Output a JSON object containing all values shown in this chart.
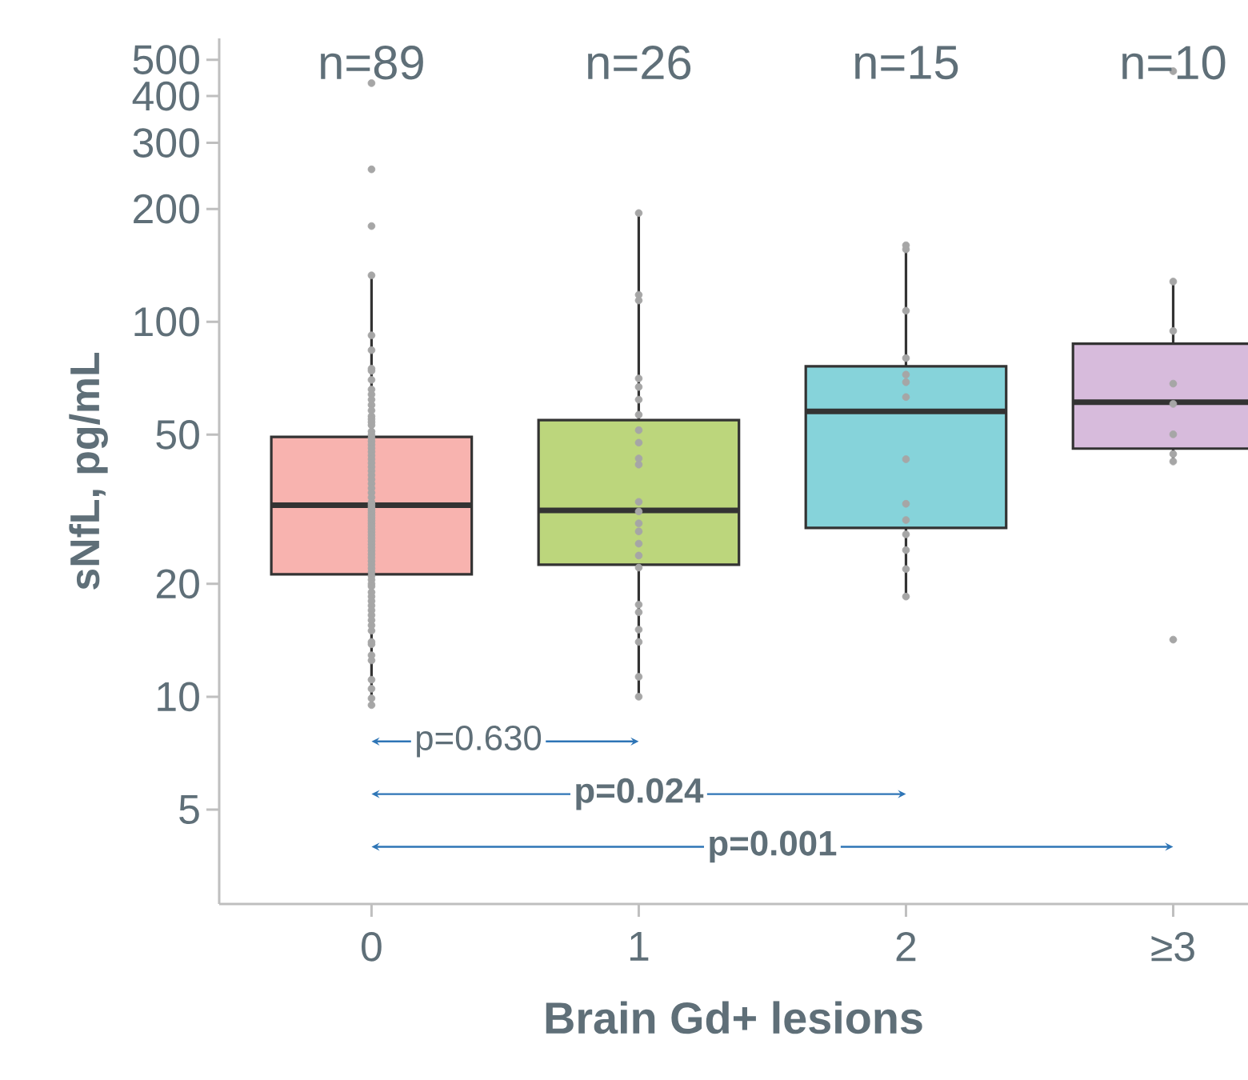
{
  "chart_data": {
    "type": "box",
    "xlabel": "Brain Gd+ lesions",
    "ylabel": "sNfL, pg/mL",
    "categories": [
      "0",
      "1",
      "2",
      "≥3"
    ],
    "boxes": [
      {
        "low": 9.5,
        "q1": 21.2,
        "median": 32.4,
        "q3": 49.3,
        "high": 131
      },
      {
        "low": 10,
        "q1": 22.5,
        "median": 31.4,
        "q3": 54.7,
        "high": 195
      },
      {
        "low": 18.6,
        "q1": 28.2,
        "median": 57.7,
        "q3": 76.1,
        "high": 160
      },
      {
        "low": 43,
        "q1": 45.9,
        "median": 61,
        "q3": 87.4,
        "high": 128
      }
    ],
    "colors": [
      "#f8b3af",
      "#bcd67c",
      "#86d3da",
      "#d7bbdc"
    ],
    "series": [
      {
        "type": "scatter",
        "color": "#a6a6a6",
        "x": [
          "0",
          "0",
          "0",
          "0",
          "0",
          "0",
          "0",
          "0",
          "0",
          "0",
          "0",
          "0",
          "0",
          "0",
          "0",
          "0",
          "0",
          "0",
          "0",
          "0",
          "0",
          "0",
          "0",
          "0",
          "0",
          "0",
          "0",
          "0",
          "0",
          "0",
          "0",
          "0",
          "0",
          "0",
          "0",
          "0",
          "0",
          "0",
          "0",
          "0",
          "0",
          "0",
          "0",
          "0",
          "0",
          "0",
          "0",
          "0",
          "0",
          "0",
          "0",
          "0",
          "0",
          "0",
          "0",
          "0",
          "0",
          "0",
          "0",
          "0",
          "0",
          "0",
          "0",
          "0",
          "0",
          "0",
          "0",
          "0",
          "0",
          "0",
          "0",
          "0",
          "0",
          "0",
          "0",
          "0",
          "0",
          "0",
          "0",
          "0",
          "0"
        ],
        "values": [
          433,
          255,
          180,
          133,
          92,
          84,
          75,
          74,
          70,
          66,
          64,
          62,
          60,
          58,
          56,
          55,
          54,
          53,
          51,
          50,
          49,
          48,
          47,
          46,
          45,
          44,
          43,
          42,
          41,
          40,
          39,
          38,
          37,
          36,
          35,
          34,
          33,
          32.5,
          32,
          31.5,
          31,
          30.5,
          30,
          29.5,
          29,
          28.5,
          28,
          27.5,
          27,
          26.5,
          26,
          25.5,
          25,
          24.5,
          24,
          23.5,
          23,
          22.5,
          22,
          21.5,
          21,
          20.5,
          20,
          19.7,
          19,
          18.5,
          18,
          17.5,
          17,
          16.5,
          16,
          15.5,
          15,
          14,
          13.8,
          12.9,
          12.5,
          11.1,
          10.5,
          9.9,
          9.5
        ]
      },
      {
        "type": "scatter",
        "color": "#a6a6a6",
        "x": [
          "1",
          "1",
          "1",
          "1",
          "1",
          "1",
          "1",
          "1",
          "1",
          "1",
          "1",
          "1",
          "1",
          "1",
          "1",
          "1",
          "1",
          "1",
          "1",
          "1",
          "1",
          "1",
          "1",
          "1"
        ],
        "values": [
          195,
          118,
          114,
          70.6,
          67,
          62,
          56.5,
          51.4,
          47.6,
          43.2,
          41.6,
          33.1,
          31.2,
          29,
          27.6,
          25.6,
          23.8,
          22.1,
          17.6,
          16.8,
          15.1,
          14,
          11.3,
          10
        ]
      },
      {
        "type": "scatter",
        "color": "#a6a6a6",
        "x": [
          "2",
          "2",
          "2",
          "2",
          "2",
          "2",
          "2",
          "2",
          "2",
          "2",
          "2",
          "2",
          "2",
          "2"
        ],
        "values": [
          160,
          156,
          107,
          80,
          72.3,
          69,
          63,
          43,
          32.7,
          29.6,
          27.1,
          24.6,
          21.9,
          18.5
        ]
      },
      {
        "type": "scatter",
        "color": "#a6a6a6",
        "x": [
          "≥3",
          "≥3",
          "≥3",
          "≥3",
          "≥3",
          "≥3",
          "≥3",
          "≥3",
          "≥3"
        ],
        "values": [
          466,
          128,
          94.5,
          68.4,
          60.4,
          50.1,
          44.4,
          42.4,
          14.2
        ]
      }
    ],
    "marker": "circle",
    "log": "y",
    "ylim": [
      2.8,
      570
    ],
    "yticks": [
      5,
      10,
      20,
      50,
      100,
      200,
      300,
      400,
      500
    ],
    "annotations": [
      "n=89",
      "n=26",
      "n=15",
      "n=10",
      "p=0.630",
      "p=0.024",
      "p=0.001"
    ]
  }
}
